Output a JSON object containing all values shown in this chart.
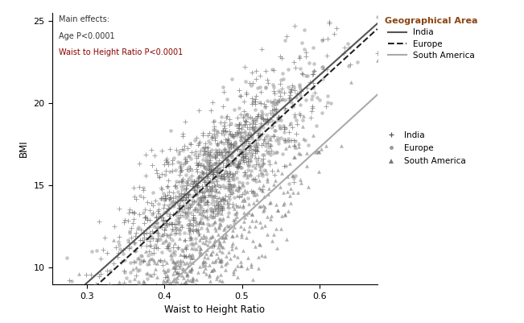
{
  "title": "",
  "xlabel": "Waist to Height Ratio",
  "ylabel": "BMI",
  "xlim": [
    0.255,
    0.675
  ],
  "ylim": [
    9.0,
    25.5
  ],
  "xticks": [
    0.3,
    0.4,
    0.5,
    0.6
  ],
  "yticks": [
    10,
    15,
    20,
    25
  ],
  "annotation_lines": [
    "Main effects:",
    "Age P<0.0001",
    "Waist to Height Ratio P<0.0001"
  ],
  "annotation_color_main": "#333333",
  "annotation_color_age": "#333333",
  "annotation_color_whr": "#8B0000",
  "n_india": 700,
  "n_europe": 700,
  "n_southamerica": 700,
  "india_line": {
    "intercept": -3.5,
    "slope": 42.0,
    "color": "#555555",
    "lw": 1.5,
    "ls": "solid"
  },
  "europe_line": {
    "intercept": -4.5,
    "slope": 43.0,
    "color": "#222222",
    "lw": 1.5,
    "ls": "dashed"
  },
  "southamerica_line": {
    "intercept": -8.5,
    "slope": 43.0,
    "color": "#aaaaaa",
    "lw": 1.5,
    "ls": "solid"
  },
  "india_marker": "+",
  "europe_marker": "o",
  "southamerica_marker": "^",
  "india_color": "#555555",
  "europe_color": "#999999",
  "southamerica_color": "#777777",
  "india_ms": 5,
  "europe_ms": 3,
  "southamerica_ms": 3,
  "legend_title": "Geographical Area",
  "legend_title_color": "#8B4513",
  "background_color": "#ffffff",
  "seed": 42
}
